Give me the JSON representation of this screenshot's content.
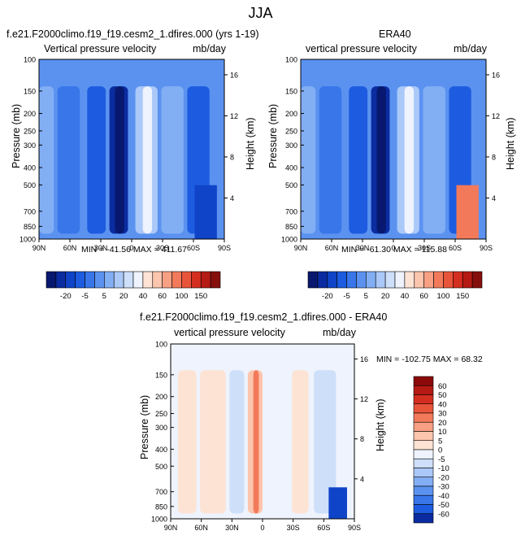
{
  "figure_title": "JJA",
  "chart_data": [
    {
      "type": "heatmap",
      "panel": "model",
      "title": "f.e21.F2000climo.f19_f19.cesm2_1.dfires.000 (yrs 1-19)",
      "left_label": "Vertical pressure velocity",
      "right_label": "mb/day",
      "xlabel": "",
      "ylabel": "Pressure (mb)",
      "y2label": "Height (km)",
      "x_ticks": [
        "90N",
        "60N",
        "30N",
        "0",
        "30S",
        "60S",
        "90S"
      ],
      "y_ticks": [
        "100",
        "150",
        "200",
        "250",
        "300",
        "400",
        "500",
        "700",
        "850",
        "1000"
      ],
      "y2_ticks": [
        "16",
        "12",
        "8",
        "4"
      ],
      "stats": "MIN = -41.56   MAX = 411.67",
      "colorbar": [
        "-20",
        "-5",
        "5",
        "20",
        "40",
        "60",
        "100",
        "150"
      ]
    },
    {
      "type": "heatmap",
      "panel": "obs",
      "title": "ERA40",
      "left_label": "vertical pressure velocity",
      "right_label": "mb/day",
      "xlabel": "",
      "ylabel": "Pressure (mb)",
      "y2label": "Height (km)",
      "x_ticks": [
        "90N",
        "60N",
        "30N",
        "0",
        "30S",
        "60S",
        "90S"
      ],
      "y_ticks": [
        "100",
        "150",
        "200",
        "250",
        "300",
        "400",
        "500",
        "700",
        "850",
        "1000"
      ],
      "y2_ticks": [
        "16",
        "12",
        "8",
        "4"
      ],
      "stats": "MIN = -61.30   MAX = 115.88",
      "colorbar": [
        "-20",
        "-5",
        "5",
        "20",
        "40",
        "60",
        "100",
        "150"
      ]
    },
    {
      "type": "heatmap",
      "panel": "difference",
      "title": "f.e21.F2000climo.f19_f19.cesm2_1.dfires.000 - ERA40",
      "left_label": "vertical pressure velocity",
      "right_label": "mb/day",
      "xlabel": "",
      "ylabel": "Pressure (mb)",
      "y2label": "Height (km)",
      "x_ticks": [
        "90N",
        "60N",
        "30N",
        "0",
        "30S",
        "60S",
        "90S"
      ],
      "y_ticks": [
        "100",
        "150",
        "200",
        "250",
        "300",
        "400",
        "500",
        "700",
        "850",
        "1000"
      ],
      "y2_ticks": [
        "16",
        "12",
        "8",
        "4"
      ],
      "stats": "MIN = -102.75   MAX =  68.32",
      "colorbar": [
        "60",
        "50",
        "40",
        "30",
        "20",
        "10",
        "5",
        "0",
        "-5",
        "-10",
        "-20",
        "-30",
        "-40",
        "-50",
        "-60"
      ]
    }
  ],
  "colors": {
    "seq_palette": [
      "#08186e",
      "#0a2ca0",
      "#0f44c8",
      "#1d5ce0",
      "#3876ea",
      "#5b92f0",
      "#82aef4",
      "#aac8f8",
      "#cddff9",
      "#eef3fd",
      "#fde3d4",
      "#fcc5ad",
      "#f8a083",
      "#f27a5b",
      "#e8543a",
      "#d42e20",
      "#b51a14",
      "#850f0c"
    ],
    "diff_palette": [
      "#8c0a0a",
      "#b51a14",
      "#d42e20",
      "#e8543a",
      "#f27a5b",
      "#f8a083",
      "#fcc5ad",
      "#fde3d4",
      "#eef3fd",
      "#cddff9",
      "#aac8f8",
      "#82aef4",
      "#5b92f0",
      "#3876ea",
      "#1d5ce0",
      "#0a2ca0"
    ]
  }
}
